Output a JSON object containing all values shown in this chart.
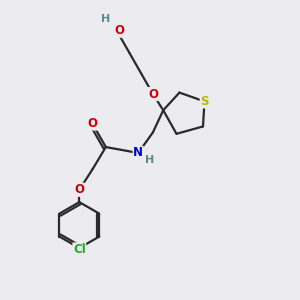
{
  "bg_color": "#ebebf0",
  "bond_color": "#2a2a2a",
  "bond_width": 1.6,
  "atom_colors": {
    "H": "#5a8a8a",
    "O": "#cc0000",
    "N": "#0000cc",
    "S": "#b8b800",
    "Cl": "#22aa22"
  },
  "font_size": 8.5,
  "fig_size": [
    3.0,
    3.0
  ],
  "dpi": 100
}
